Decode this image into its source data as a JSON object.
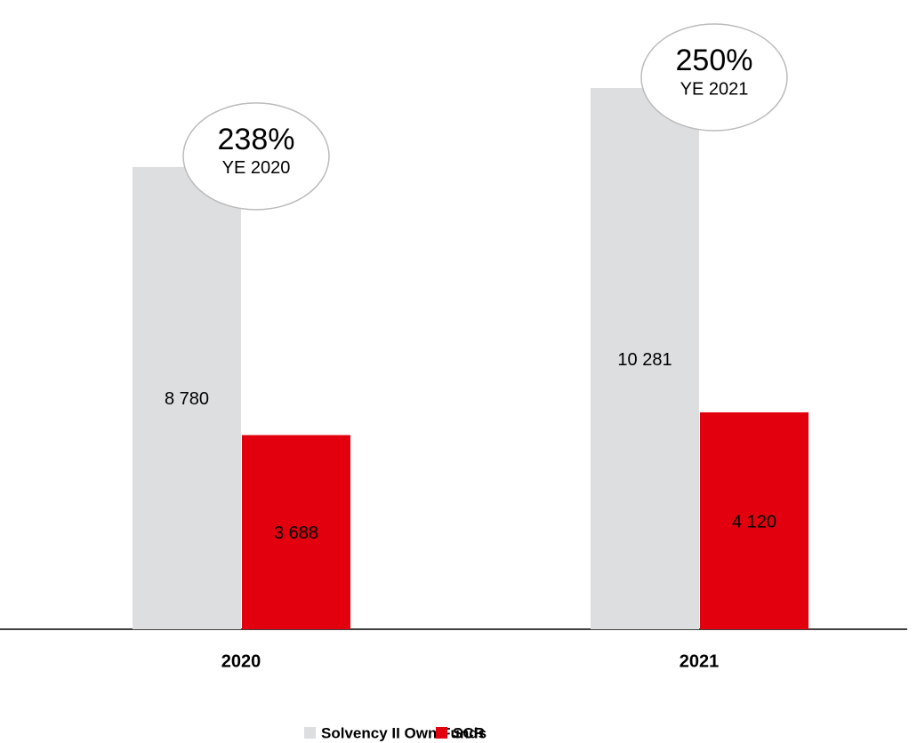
{
  "chart_data": {
    "type": "bar",
    "categories": [
      "2020",
      "2021"
    ],
    "series": [
      {
        "name": "Solvency II Own Funds",
        "color": "#dcdedf",
        "values": [
          8780,
          10281
        ],
        "value_labels": [
          "8 780",
          "10 281"
        ]
      },
      {
        "name": "SCR",
        "color": "#e2000f",
        "values": [
          3688,
          4120
        ],
        "value_labels": [
          "3 688",
          "4 120"
        ]
      }
    ],
    "annotations": [
      {
        "text": "238%",
        "subtext": "YE 2020"
      },
      {
        "text": "250%",
        "subtext": "YE 2021"
      }
    ],
    "legend": "bottom"
  }
}
